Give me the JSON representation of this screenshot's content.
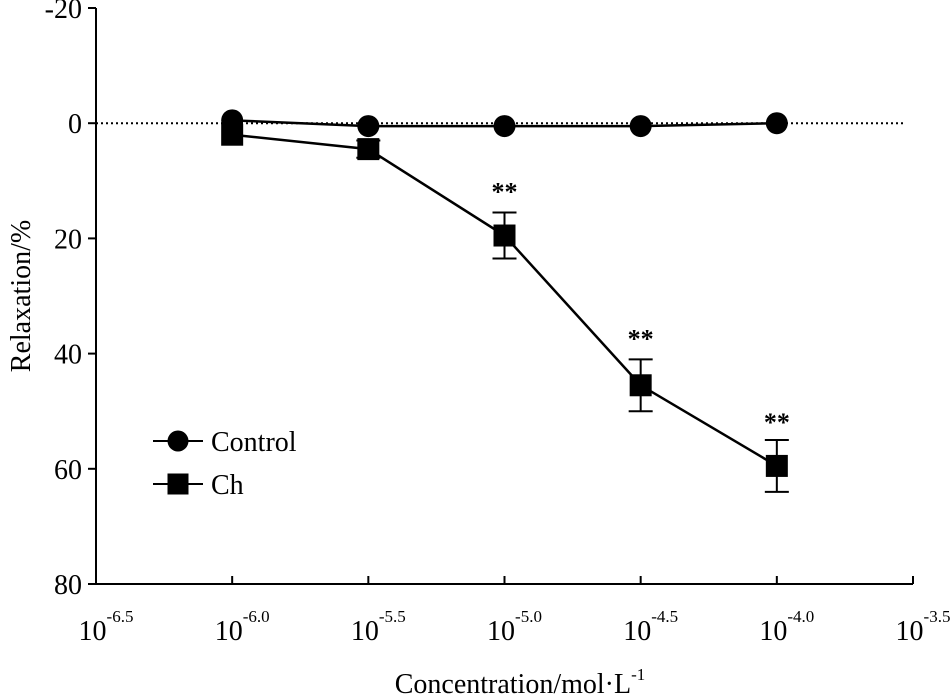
{
  "chart_data": {
    "type": "line",
    "xlabel": "Concentration/mol·L",
    "xlabel_sup": "-1",
    "ylabel": "Relaxation/%",
    "x_tick_base": "10",
    "x_ticks": [
      -6.5,
      -6.0,
      -5.5,
      -5.0,
      -4.5,
      -4.0,
      -3.5
    ],
    "x_tick_exps": [
      "-6.5",
      "-6.0",
      "-5.5",
      "-5.0",
      "-4.5",
      "-4.0",
      "-3.5"
    ],
    "xlim": [
      -6.5,
      -3.5
    ],
    "y_ticks": [
      "-20",
      "0",
      "20",
      "40",
      "60",
      "80"
    ],
    "y_tick_values": [
      -20,
      0,
      20,
      40,
      60,
      80
    ],
    "ylim": [
      -20,
      80
    ],
    "y_inverted": true,
    "reference_line": {
      "y": 0,
      "style": "dotted"
    },
    "x": [
      -6.0,
      -5.5,
      -5.0,
      -4.5,
      -4.0
    ],
    "series": [
      {
        "name": "Control",
        "marker": "circle",
        "values": [
          -0.5,
          0.5,
          0.5,
          0.5,
          0
        ],
        "errors": [
          0,
          0,
          0,
          0,
          0
        ]
      },
      {
        "name": "Ch",
        "marker": "square",
        "values": [
          2,
          4.5,
          19.5,
          45.5,
          59.5
        ],
        "errors": [
          0,
          1.5,
          4,
          4.5,
          4.5
        ]
      }
    ],
    "annotations": [
      {
        "x": -5.0,
        "y": 11,
        "text": "**"
      },
      {
        "x": -4.5,
        "y": 36.5,
        "text": "**"
      },
      {
        "x": -4.0,
        "y": 51,
        "text": "**"
      }
    ],
    "legend_position": "bottom-left"
  }
}
